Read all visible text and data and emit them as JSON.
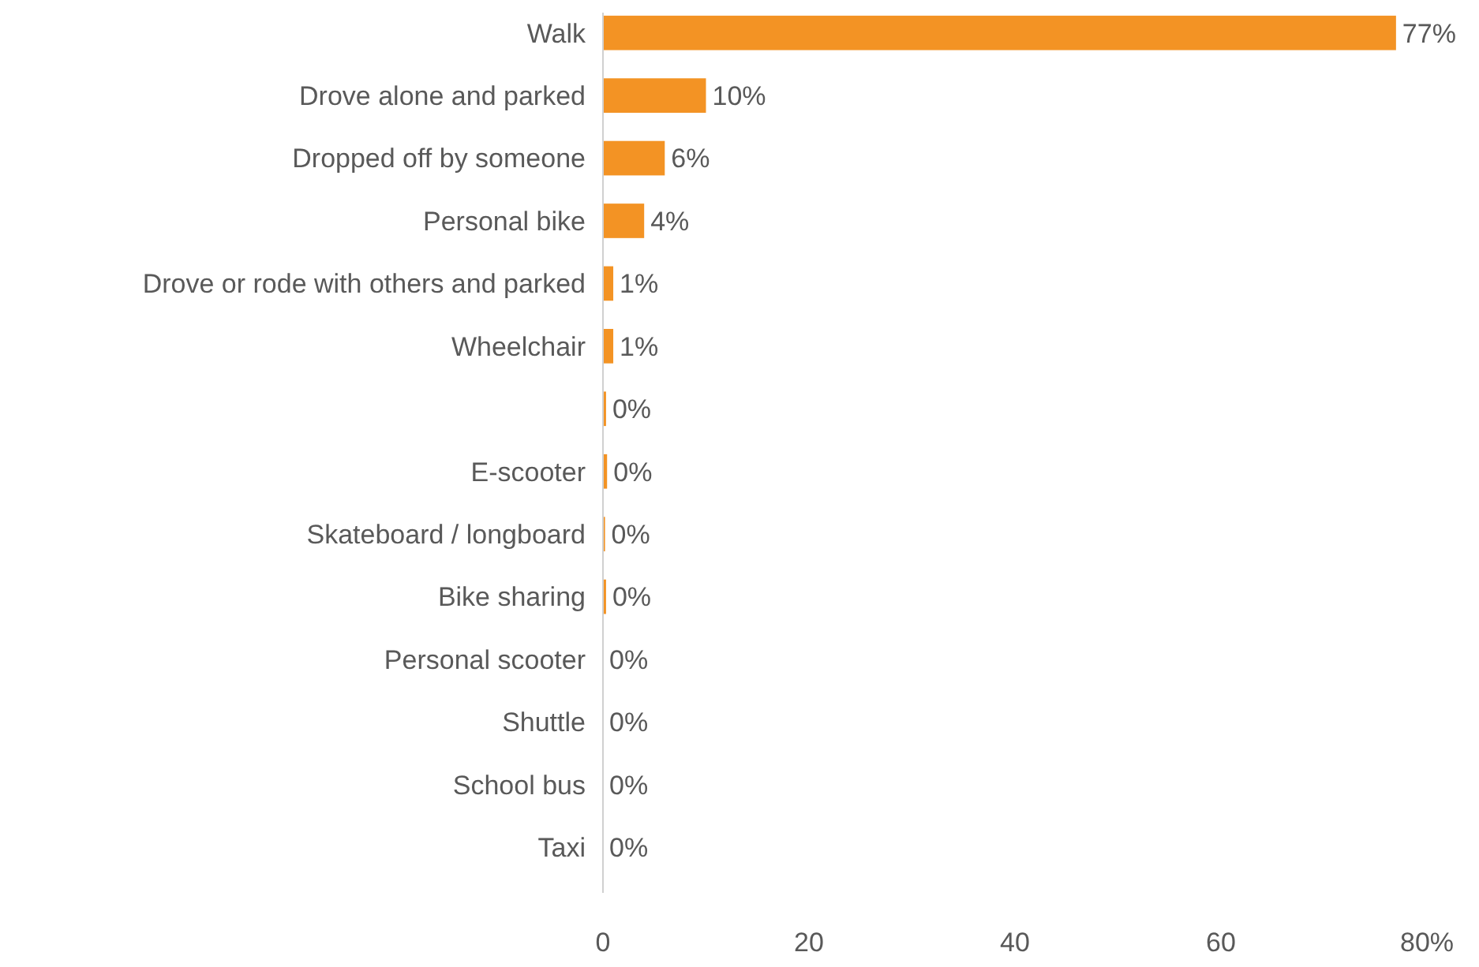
{
  "chart_data": {
    "type": "bar",
    "orientation": "horizontal",
    "categories": [
      "Walk",
      "Drove alone and parked",
      "Dropped off by someone",
      "Personal bike",
      "Drove or rode with others and parked",
      "Wheelchair",
      null,
      "E-scooter",
      "Skateboard / longboard",
      "Bike sharing",
      "Personal scooter",
      "Shuttle",
      "School bus",
      "Taxi"
    ],
    "values": [
      77,
      10,
      6,
      4,
      1,
      1,
      0.3,
      0.4,
      0.2,
      0.3,
      0,
      0,
      0,
      0
    ],
    "value_labels": [
      "77%",
      "10%",
      "6%",
      "4%",
      "1%",
      "1%",
      "0%",
      "0%",
      "0%",
      "0%",
      "0%",
      "0%",
      "0%",
      "0%"
    ],
    "color": "#f39324",
    "xlim": [
      0,
      80
    ],
    "xticks": [
      0,
      20,
      40,
      60,
      {
        "value": 80,
        "label": "80%"
      }
    ]
  }
}
